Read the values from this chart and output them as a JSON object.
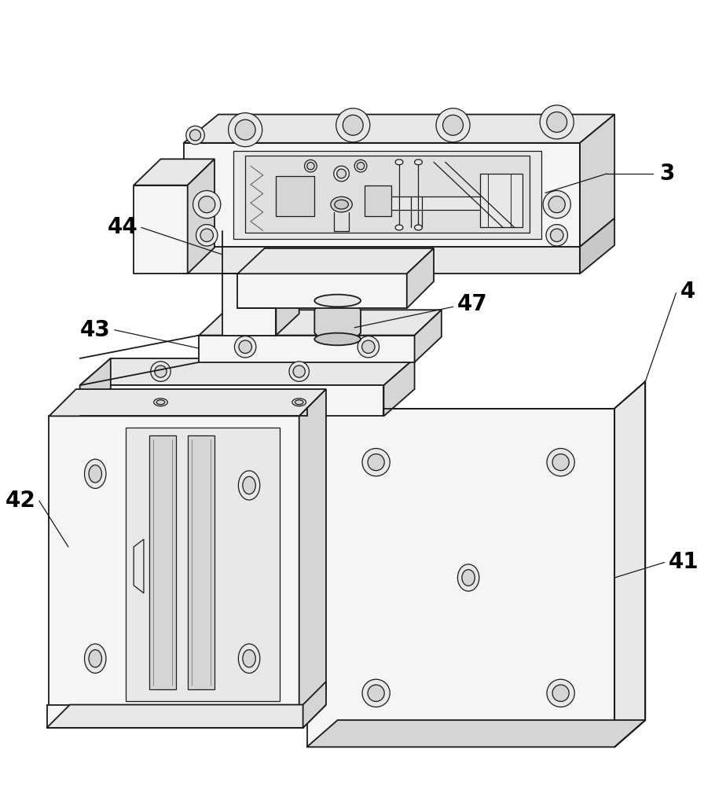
{
  "background_color": "#ffffff",
  "line_color": "#1a1a1a",
  "text_color": "#000000",
  "label_fontsize": 20,
  "figsize": [
    8.96,
    10.0
  ],
  "dpi": 100,
  "face_light": "#f5f5f5",
  "face_mid": "#e8e8e8",
  "face_dark": "#d5d5d5",
  "face_darker": "#c8c8c8",
  "face_inner": "#e0e0e0"
}
